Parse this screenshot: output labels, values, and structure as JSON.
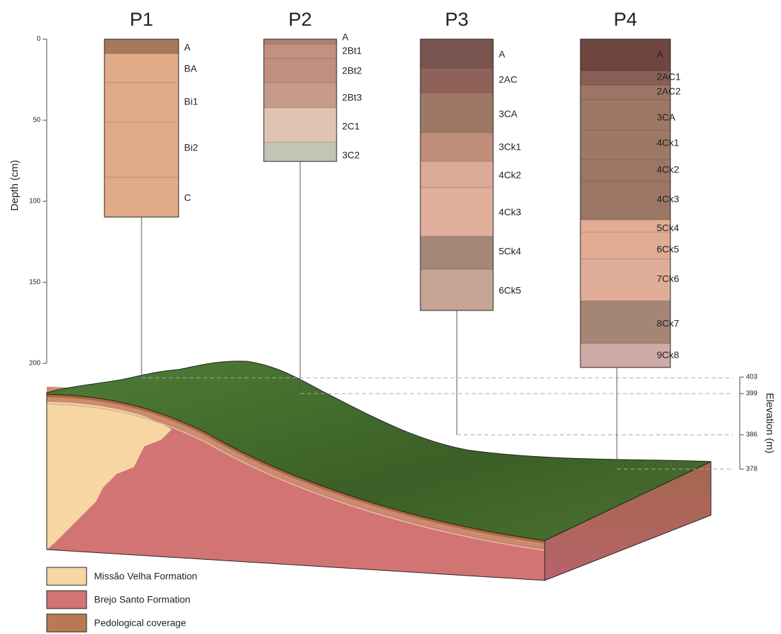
{
  "depth_axis": {
    "label": "Depth (cm)",
    "ticks": [
      0,
      50,
      100,
      150,
      200
    ]
  },
  "elevation_axis": {
    "label": "Elevation (m)",
    "ticks": [
      403,
      399,
      386,
      378
    ]
  },
  "profiles": [
    {
      "name": "P1",
      "horizons": [
        "A",
        "BA",
        "Bi1",
        "Bi2",
        "C"
      ]
    },
    {
      "name": "P2",
      "horizons": [
        "A",
        "2Bt1",
        "2Bt2",
        "2Bt3",
        "2C1",
        "3C2"
      ]
    },
    {
      "name": "P3",
      "horizons": [
        "A",
        "2AC",
        "3CA",
        "3Ck1",
        "4Ck2",
        "4Ck3",
        "5Ck4",
        "6Ck5"
      ]
    },
    {
      "name": "P4",
      "horizons": [
        "A",
        "2AC1",
        "2AC2",
        "3CA",
        "4Ck1",
        "4Ck2",
        "4Ck3",
        "5Ck4",
        "6Ck5",
        "7Ck6",
        "8Ck7",
        "9Ck8"
      ]
    }
  ],
  "legend": [
    "Missão Velha Formation",
    "Brejo Santo Formation",
    "Pedological coverage"
  ]
}
